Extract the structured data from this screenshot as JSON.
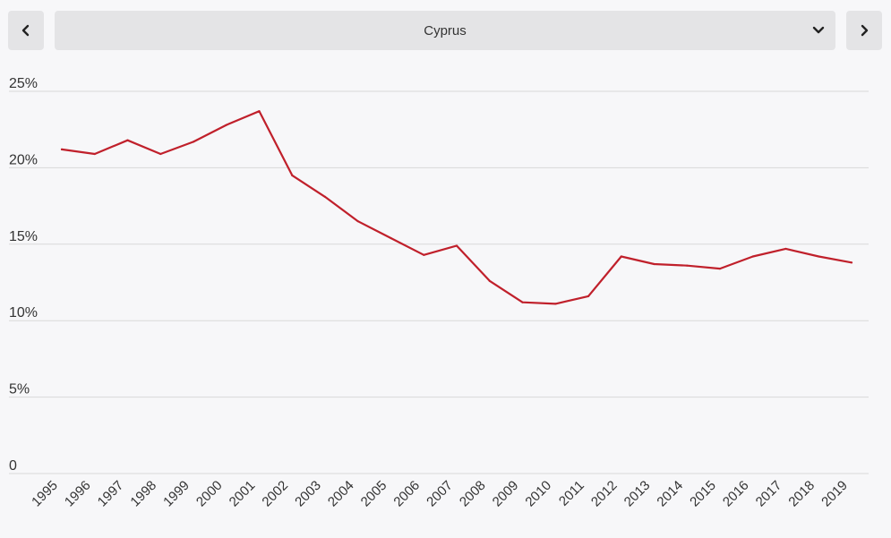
{
  "selector": {
    "selected": "Cyprus",
    "prev_icon": "chevron-left-icon",
    "next_icon": "chevron-right-icon",
    "dropdown_icon": "chevron-down-icon"
  },
  "colors": {
    "line": "#c0202b",
    "grid": "#d9d9d9",
    "text": "#333333"
  },
  "chart_data": {
    "type": "line",
    "title": "",
    "xlabel": "",
    "ylabel": "",
    "ylim": [
      0,
      25
    ],
    "y_ticks": [
      {
        "value": 0,
        "label": "0"
      },
      {
        "value": 5,
        "label": "5%"
      },
      {
        "value": 10,
        "label": "10%"
      },
      {
        "value": 15,
        "label": "15%"
      },
      {
        "value": 20,
        "label": "20%"
      },
      {
        "value": 25,
        "label": "25%"
      }
    ],
    "grid": true,
    "categories": [
      "1995",
      "1996",
      "1997",
      "1998",
      "1999",
      "2000",
      "2001",
      "2002",
      "2003",
      "2004",
      "2005",
      "2006",
      "2007",
      "2008",
      "2009",
      "2010",
      "2011",
      "2012",
      "2013",
      "2014",
      "2015",
      "2016",
      "2017",
      "2018",
      "2019"
    ],
    "series": [
      {
        "values": [
          21.2,
          20.9,
          21.8,
          20.9,
          21.7,
          22.8,
          23.7,
          19.5,
          18.1,
          16.5,
          15.4,
          14.3,
          14.9,
          12.6,
          11.2,
          11.1,
          11.6,
          14.2,
          13.7,
          13.6,
          13.4,
          14.2,
          14.7,
          14.2,
          13.8
        ]
      }
    ]
  }
}
